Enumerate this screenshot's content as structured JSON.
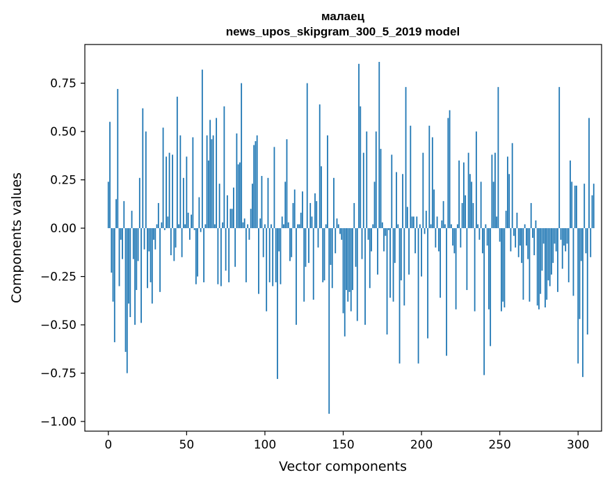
{
  "chart_data": {
    "type": "bar",
    "title": "малаец",
    "subtitle": "news_upos_skipgram_300_5_2019 model",
    "xlabel": "Vector components",
    "ylabel": "Components values",
    "xlim": [
      -15,
      315
    ],
    "ylim": [
      -1.05,
      0.95
    ],
    "x_ticks": [
      0,
      50,
      100,
      150,
      200,
      250,
      300
    ],
    "y_ticks": [
      -1.0,
      -0.75,
      -0.5,
      -0.25,
      0.0,
      0.25,
      0.5,
      0.75
    ],
    "y_tick_labels": [
      "−1.00",
      "−0.75",
      "−0.50",
      "−0.25",
      "0.00",
      "0.25",
      "0.50",
      "0.75"
    ],
    "color": "#1f77b4",
    "grid": false,
    "values": [
      0.24,
      0.55,
      -0.23,
      -0.38,
      -0.59,
      0.15,
      0.72,
      -0.3,
      -0.06,
      -0.16,
      0.14,
      -0.64,
      -0.75,
      -0.39,
      -0.46,
      0.09,
      -0.16,
      -0.5,
      -0.32,
      -0.17,
      0.26,
      -0.49,
      0.62,
      -0.11,
      0.5,
      -0.31,
      -0.12,
      -0.28,
      -0.39,
      -0.06,
      -0.11,
      0.02,
      0.13,
      -0.33,
      0.03,
      0.52,
      -0.01,
      0.37,
      0.06,
      0.39,
      -0.14,
      0.38,
      -0.17,
      -0.1,
      0.68,
      0.02,
      0.48,
      -0.15,
      0.26,
      0.02,
      0.37,
      0.08,
      -0.06,
      0.07,
      0.47,
      -0.01,
      -0.29,
      -0.25,
      0.16,
      -0.02,
      0.82,
      -0.28,
      0.02,
      0.48,
      0.35,
      0.56,
      0.46,
      0.48,
      0.02,
      0.57,
      -0.29,
      0.23,
      -0.3,
      0.03,
      0.63,
      -0.22,
      0.17,
      -0.28,
      0.1,
      0.1,
      0.21,
      -0.2,
      0.49,
      0.33,
      0.34,
      0.75,
      0.03,
      0.05,
      -0.28,
      0.02,
      -0.06,
      0.1,
      0.23,
      0.43,
      0.45,
      0.48,
      -0.34,
      0.05,
      0.27,
      -0.15,
      0.02,
      -0.43,
      0.26,
      -0.28,
      0.02,
      -0.3,
      0.42,
      -0.28,
      -0.78,
      -0.12,
      -0.29,
      0.06,
      0.02,
      0.24,
      0.46,
      0.03,
      -0.17,
      -0.15,
      0.13,
      0.2,
      -0.5,
      0.02,
      0.02,
      0.08,
      0.19,
      -0.38,
      -0.2,
      0.75,
      -0.18,
      0.13,
      0.06,
      -0.37,
      0.18,
      0.14,
      -0.1,
      0.64,
      0.32,
      -0.28,
      -0.27,
      0.02,
      0.48,
      -0.96,
      -0.19,
      -0.31,
      0.26,
      -0.13,
      0.05,
      0.02,
      -0.03,
      -0.06,
      -0.44,
      -0.56,
      -0.32,
      -0.38,
      -0.33,
      -0.43,
      -0.32,
      0.13,
      -0.2,
      -0.48,
      0.85,
      0.63,
      -0.16,
      0.39,
      -0.5,
      0.5,
      -0.06,
      -0.31,
      -0.12,
      0.02,
      0.24,
      0.5,
      -0.24,
      0.86,
      0.41,
      0.03,
      -0.12,
      -0.04,
      -0.55,
      -0.01,
      -0.36,
      0.38,
      -0.38,
      -0.18,
      0.29,
      0.02,
      -0.7,
      -0.27,
      0.28,
      -0.4,
      0.73,
      0.11,
      -0.24,
      0.53,
      0.06,
      0.06,
      -0.13,
      0.06,
      -0.7,
      0.02,
      -0.25,
      0.39,
      -0.03,
      0.09,
      -0.57,
      0.53,
      0.02,
      0.47,
      0.2,
      -0.1,
      0.06,
      -0.12,
      -0.36,
      0.04,
      0.14,
      0.02,
      -0.66,
      0.57,
      0.61,
      0.02,
      -0.09,
      -0.13,
      -0.42,
      0.02,
      0.35,
      -0.1,
      0.13,
      0.34,
      0.17,
      -0.32,
      0.39,
      0.28,
      0.24,
      0.13,
      -0.43,
      0.5,
      0.02,
      -0.06,
      0.24,
      -0.13,
      -0.76,
      0.02,
      -0.09,
      -0.42,
      -0.61,
      0.38,
      0.24,
      0.39,
      0.06,
      0.73,
      -0.07,
      -0.43,
      -0.38,
      -0.41,
      0.09,
      0.37,
      0.28,
      -0.12,
      0.44,
      -0.04,
      -0.1,
      0.08,
      -0.15,
      -0.09,
      -0.18,
      -0.37,
      0.02,
      -0.09,
      -0.16,
      -0.38,
      0.13,
      -0.05,
      -0.14,
      0.04,
      -0.4,
      -0.42,
      -0.34,
      -0.22,
      -0.08,
      -0.41,
      -0.37,
      -0.27,
      -0.3,
      -0.24,
      -0.18,
      -0.08,
      -0.12,
      -0.33,
      0.73,
      -0.06,
      -0.21,
      -0.09,
      -0.12,
      -0.08,
      -0.28,
      0.35,
      0.24,
      -0.35,
      0.22,
      0.22,
      -0.7,
      -0.47,
      -0.17,
      -0.77,
      0.23,
      -0.13,
      -0.55,
      0.57,
      -0.15,
      0.17,
      0.23
    ]
  }
}
